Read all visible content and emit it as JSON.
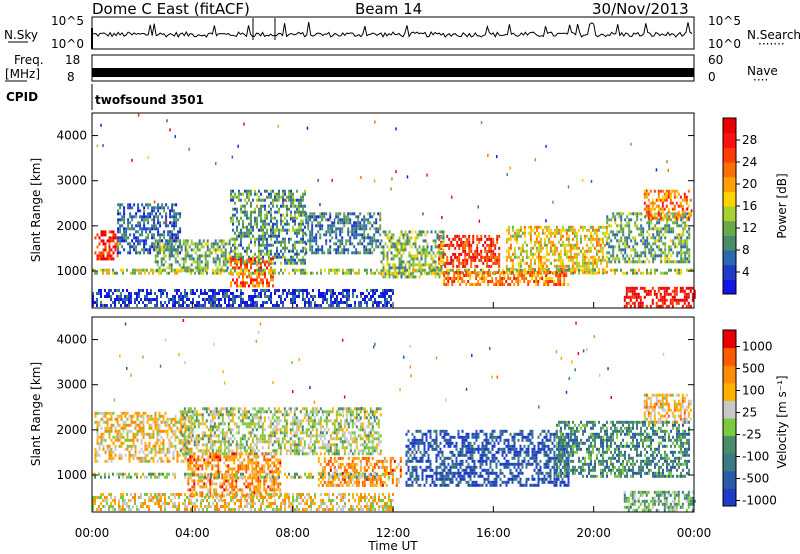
{
  "header": {
    "radar": "Dome C East (fitACF)",
    "beam": "Beam 14",
    "date": "30/Nov/2013"
  },
  "noise_panel": {
    "left_label": "N.Sky",
    "right_label": "N.Search",
    "left_top": "10^5",
    "left_bottom": "10^0",
    "right_top": "10^5",
    "right_bottom": "10^0",
    "right_dots": "·······"
  },
  "freq_panel": {
    "left_label_1": "Freq.",
    "left_label_2": "[MHz]",
    "right_label": "Nave",
    "left_top": "18",
    "left_bottom": "8",
    "right_top": "60",
    "right_bottom": "0",
    "right_dots": "····"
  },
  "cpid": {
    "label": "CPID",
    "value": "twofsound 3501"
  },
  "chart_data": [
    {
      "type": "heatmap",
      "title": "",
      "xlabel": "Time UT",
      "ylabel": "Slant Range [km]",
      "x_ticks": [
        "00:00",
        "04:00",
        "08:00",
        "12:00",
        "16:00",
        "20:00",
        "00:00"
      ],
      "y_ticks": [
        "1000",
        "2000",
        "3000",
        "4000"
      ],
      "ylim": [
        180,
        4500
      ],
      "colorbar": {
        "label": "Power [dB]",
        "ticks": [
          "4",
          "8",
          "12",
          "16",
          "20",
          "24",
          "28"
        ],
        "colors": [
          "#1414e6",
          "#1e3cc8",
          "#2a68b0",
          "#4a8c6a",
          "#6aa84c",
          "#a8d030",
          "#ffd200",
          "#ffa000",
          "#ff6e00",
          "#ff3c00",
          "#ff1010",
          "#e80000"
        ]
      },
      "regions": [
        {
          "t0": 0.1,
          "t1": 1.0,
          "r0": 1300,
          "r1": 1900,
          "level": 0.85
        },
        {
          "t0": 1.0,
          "t1": 3.5,
          "r0": 1400,
          "r1": 2500,
          "level": 0.2
        },
        {
          "t0": 2.5,
          "t1": 5.5,
          "r0": 1000,
          "r1": 1700,
          "level": 0.35
        },
        {
          "t0": 5.5,
          "t1": 8.5,
          "r0": 1200,
          "r1": 2800,
          "level": 0.3
        },
        {
          "t0": 8.5,
          "t1": 11.5,
          "r0": 1400,
          "r1": 2300,
          "level": 0.25
        },
        {
          "t0": 5.5,
          "t1": 7.2,
          "r0": 700,
          "r1": 1300,
          "level": 0.75
        },
        {
          "t0": 0.0,
          "t1": 12.0,
          "r0": 250,
          "r1": 600,
          "level": 0.1
        },
        {
          "t0": 13.8,
          "t1": 16.2,
          "r0": 1100,
          "r1": 1800,
          "level": 0.85
        },
        {
          "t0": 11.5,
          "t1": 14.0,
          "r0": 900,
          "r1": 1900,
          "level": 0.4
        },
        {
          "t0": 16.5,
          "t1": 20.5,
          "r0": 1000,
          "r1": 2000,
          "level": 0.55
        },
        {
          "t0": 20.5,
          "t1": 23.8,
          "r0": 1200,
          "r1": 2300,
          "level": 0.35
        },
        {
          "t0": 22.0,
          "t1": 23.9,
          "r0": 2200,
          "r1": 2800,
          "level": 0.7
        },
        {
          "t0": 21.2,
          "t1": 24.0,
          "r0": 250,
          "r1": 650,
          "level": 0.92
        },
        {
          "t0": 0.0,
          "t1": 24.0,
          "r0": 950,
          "r1": 1050,
          "level": 0.45
        },
        {
          "t0": 14.0,
          "t1": 19.0,
          "r0": 700,
          "r1": 1000,
          "level": 0.7
        }
      ]
    },
    {
      "type": "heatmap",
      "title": "",
      "xlabel": "Time UT",
      "ylabel": "Slant Range [km]",
      "x_ticks": [
        "00:00",
        "04:00",
        "08:00",
        "12:00",
        "16:00",
        "20:00",
        "00:00"
      ],
      "y_ticks": [
        "1000",
        "2000",
        "3000",
        "4000"
      ],
      "ylim": [
        180,
        4500
      ],
      "colorbar": {
        "label": "Velocity [m s⁻¹]",
        "ticks": [
          "1000",
          "500",
          "100",
          "25",
          "-25",
          "-100",
          "-500",
          "-1000"
        ],
        "colors": [
          "#1e3cc8",
          "#2a5aa8",
          "#3a7a80",
          "#4a8c6a",
          "#7cc840",
          "#c8c8c8",
          "#ffb000",
          "#ff8c00",
          "#ff5a00",
          "#e80000"
        ]
      },
      "regions": [
        {
          "t0": 0.1,
          "t1": 4.0,
          "r0": 1300,
          "r1": 2400,
          "level": 0.62
        },
        {
          "t0": 3.5,
          "t1": 11.5,
          "r0": 1500,
          "r1": 2500,
          "level": 0.5
        },
        {
          "t0": 3.8,
          "t1": 7.5,
          "r0": 550,
          "r1": 1500,
          "level": 0.75
        },
        {
          "t0": 9.0,
          "t1": 12.3,
          "r0": 800,
          "r1": 1400,
          "level": 0.75
        },
        {
          "t0": 12.5,
          "t1": 19.0,
          "r0": 800,
          "r1": 2000,
          "level": 0.12
        },
        {
          "t0": 18.5,
          "t1": 23.8,
          "r0": 1000,
          "r1": 2200,
          "level": 0.3
        },
        {
          "t0": 21.2,
          "t1": 24.0,
          "r0": 250,
          "r1": 650,
          "level": 0.4
        },
        {
          "t0": 0.0,
          "t1": 12.0,
          "r0": 250,
          "r1": 600,
          "level": 0.6
        },
        {
          "t0": 0.0,
          "t1": 12.0,
          "r0": 950,
          "r1": 1050,
          "level": 0.5
        },
        {
          "t0": 22.0,
          "t1": 23.9,
          "r0": 2200,
          "r1": 2800,
          "level": 0.65
        }
      ]
    }
  ]
}
